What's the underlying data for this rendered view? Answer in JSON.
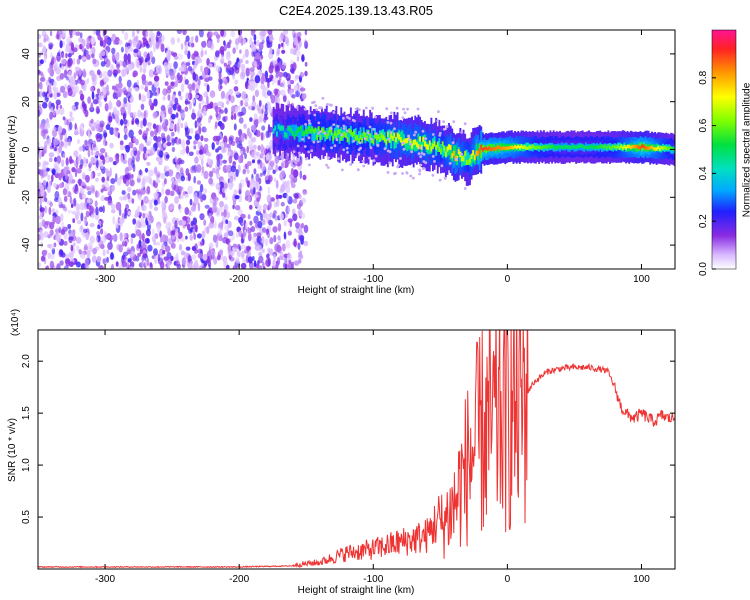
{
  "chart_data": [
    {
      "type": "heatmap",
      "title": "C2E4.2025.139.13.43.R05",
      "xlabel": "Height of straight line (km)",
      "ylabel": "Frequency (Hz)",
      "xlim": [
        -350,
        125
      ],
      "ylim": [
        -50,
        50
      ],
      "x_ticks": [
        -300,
        -200,
        -100,
        0,
        100
      ],
      "y_ticks": [
        -40,
        -20,
        0,
        20,
        40
      ],
      "colorbar": {
        "label": "Normalized spectral amplitude",
        "range": [
          0,
          1
        ],
        "ticks": [
          0.0,
          0.2,
          0.4,
          0.6,
          0.8
        ]
      },
      "noise_region_x": [
        -350,
        -160
      ],
      "ridge": {
        "x": [
          -175,
          -160,
          -140,
          -120,
          -100,
          -80,
          -60,
          -50,
          -40,
          -30,
          -20,
          0,
          20,
          40,
          60,
          80,
          100,
          125
        ],
        "freq": [
          8,
          7,
          7,
          6,
          5,
          4,
          2,
          1,
          -2,
          -4,
          0,
          1,
          1,
          1,
          1,
          1,
          1,
          0
        ],
        "amplitude": [
          0.4,
          0.5,
          0.6,
          0.6,
          0.6,
          0.7,
          0.7,
          0.6,
          0.8,
          0.6,
          0.9,
          0.8,
          0.6,
          0.5,
          0.5,
          0.6,
          0.9,
          0.5
        ]
      }
    },
    {
      "type": "line",
      "xlabel": "Height of straight line (km)",
      "ylabel": "SNR (10 * v/v)",
      "y_multiplier": "(x10⁴)",
      "xlim": [
        -350,
        125
      ],
      "ylim": [
        0,
        2.3
      ],
      "x_ticks": [
        -300,
        -200,
        -100,
        0,
        100
      ],
      "y_ticks": [
        0.5,
        1.0,
        1.5,
        2.0
      ],
      "y_tick_labels": [
        "0.5",
        "1.0",
        "1.5",
        "2.0"
      ],
      "series": [
        {
          "color": "#ee3333",
          "x": [
            -350,
            -300,
            -250,
            -200,
            -160,
            -140,
            -120,
            -100,
            -80,
            -60,
            -50,
            -40,
            -30,
            -20,
            -10,
            0,
            10,
            20,
            30,
            40,
            50,
            60,
            70,
            75,
            80,
            85,
            90,
            95,
            100,
            105,
            110,
            115,
            120,
            125
          ],
          "y": [
            0.02,
            0.02,
            0.02,
            0.02,
            0.03,
            0.05,
            0.12,
            0.15,
            0.2,
            0.25,
            0.4,
            0.6,
            1.0,
            1.3,
            1.4,
            1.5,
            1.6,
            1.8,
            1.9,
            1.93,
            1.94,
            1.94,
            1.92,
            1.9,
            1.75,
            1.55,
            1.48,
            1.45,
            1.5,
            1.45,
            1.42,
            1.48,
            1.45,
            1.45
          ]
        }
      ]
    }
  ]
}
